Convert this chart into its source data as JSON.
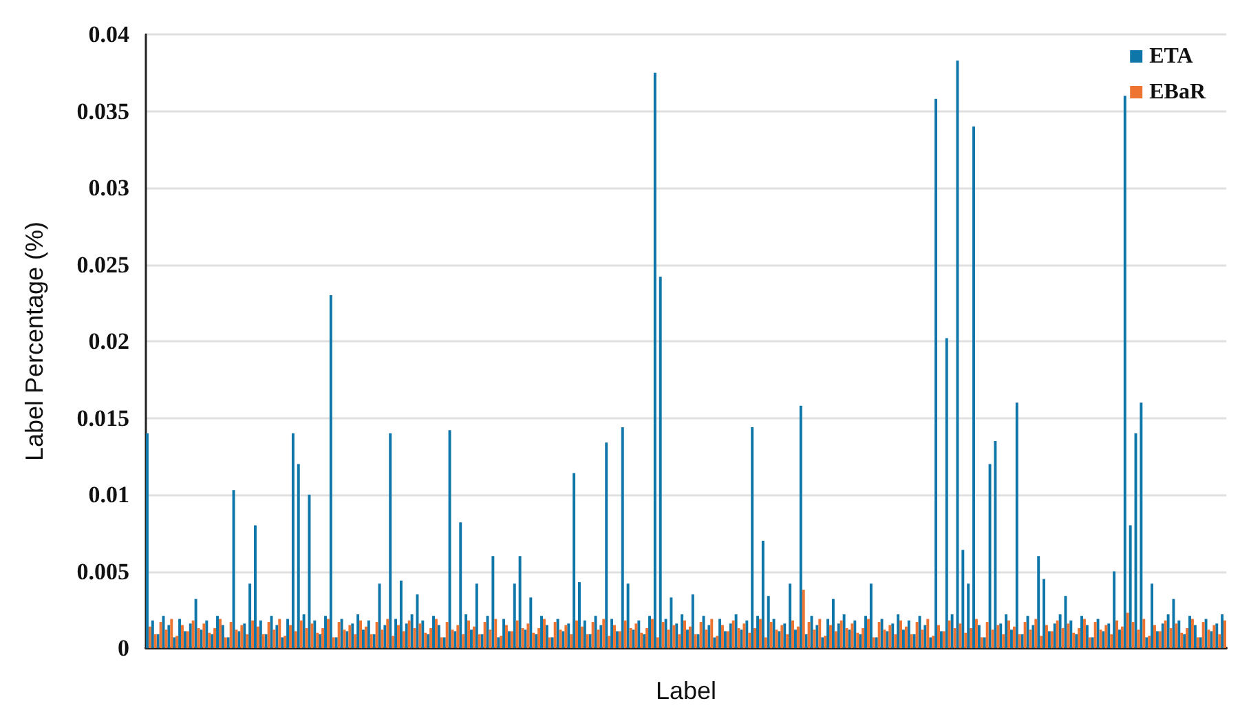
{
  "chart_data": {
    "type": "bar",
    "xlabel": "Label",
    "ylabel": "Label Percentage (%)",
    "categories": [
      null,
      null,
      null,
      null,
      null,
      null,
      null,
      null,
      null,
      null,
      null,
      null,
      null,
      null,
      null,
      null,
      null,
      null,
      null,
      null,
      null,
      null,
      null,
      null,
      null,
      null,
      null,
      null,
      null,
      null,
      null,
      null,
      null,
      null,
      null,
      null,
      null,
      null,
      null,
      null,
      null,
      null,
      null,
      null,
      null,
      null,
      null,
      null,
      null,
      null,
      null,
      null,
      null,
      null,
      null,
      null,
      null,
      null,
      null,
      null,
      null,
      null,
      null,
      null,
      null,
      null,
      null,
      null,
      null,
      null,
      null,
      null,
      null,
      null,
      null,
      null,
      null,
      null,
      null,
      null,
      null,
      null,
      null,
      null,
      null,
      null,
      null,
      null,
      null,
      null,
      null,
      null,
      null,
      null,
      null,
      null,
      null,
      null,
      null,
      null,
      null,
      null,
      null,
      null,
      null,
      null,
      null,
      null,
      null,
      null,
      null,
      null,
      null,
      null,
      null,
      null,
      null,
      null,
      null,
      null,
      null,
      null,
      null,
      null,
      null,
      null,
      null,
      null,
      null,
      null,
      null,
      null,
      null,
      null,
      null,
      null,
      null,
      null,
      null,
      null,
      null,
      null,
      null,
      null,
      null,
      null,
      null,
      null,
      null,
      null,
      null,
      null,
      null,
      null,
      null,
      null,
      null,
      null,
      null,
      null,
      null,
      null,
      null,
      null,
      null,
      null,
      null,
      null,
      null,
      null,
      null,
      null,
      null,
      null,
      null,
      null,
      null,
      null,
      null,
      null,
      null,
      null,
      null,
      null,
      null,
      null,
      null,
      null,
      null,
      null,
      null,
      null,
      null,
      null,
      null,
      null,
      null,
      null,
      null,
      null
    ],
    "series": [
      {
        "name": "ETA",
        "color": "#0e76a8",
        "values": [
          0.014,
          0.0018,
          0.0009,
          0.0021,
          0.0015,
          0.0007,
          0.0019,
          0.0011,
          0.0016,
          0.0032,
          0.0012,
          0.0018,
          0.0009,
          0.0021,
          0.0015,
          0.0007,
          0.0103,
          0.0011,
          0.0016,
          0.0042,
          0.008,
          0.0018,
          0.0009,
          0.0021,
          0.0015,
          0.0007,
          0.0019,
          0.014,
          0.012,
          0.0022,
          0.01,
          0.0018,
          0.0009,
          0.0021,
          0.023,
          0.0007,
          0.0019,
          0.0011,
          0.0016,
          0.0022,
          0.0012,
          0.0018,
          0.0009,
          0.0042,
          0.0015,
          0.014,
          0.0019,
          0.0044,
          0.0016,
          0.0022,
          0.0035,
          0.0018,
          0.0009,
          0.0021,
          0.0015,
          0.0007,
          0.0142,
          0.0011,
          0.0082,
          0.0022,
          0.0012,
          0.0042,
          0.0009,
          0.0021,
          0.006,
          0.0007,
          0.0019,
          0.0011,
          0.0042,
          0.006,
          0.0012,
          0.0033,
          0.0009,
          0.0021,
          0.0015,
          0.0007,
          0.0019,
          0.0011,
          0.0016,
          0.0114,
          0.0043,
          0.0018,
          0.0009,
          0.0021,
          0.0015,
          0.0134,
          0.0019,
          0.0011,
          0.0144,
          0.0042,
          0.0012,
          0.0018,
          0.0009,
          0.0021,
          0.0375,
          0.0242,
          0.0019,
          0.0033,
          0.0016,
          0.0022,
          0.0012,
          0.0035,
          0.0009,
          0.0021,
          0.0015,
          0.0007,
          0.0019,
          0.0011,
          0.0016,
          0.0022,
          0.0012,
          0.0018,
          0.0144,
          0.0021,
          0.007,
          0.0034,
          0.0019,
          0.0011,
          0.0016,
          0.0042,
          0.0012,
          0.0158,
          0.0009,
          0.0021,
          0.0015,
          0.0007,
          0.0019,
          0.0032,
          0.0016,
          0.0022,
          0.0012,
          0.0018,
          0.0009,
          0.0021,
          0.0042,
          0.0007,
          0.0019,
          0.0011,
          0.0016,
          0.0022,
          0.0012,
          0.0018,
          0.0009,
          0.0021,
          0.0015,
          0.0007,
          0.0358,
          0.0011,
          0.0202,
          0.0022,
          0.0383,
          0.0064,
          0.0042,
          0.034,
          0.0015,
          0.0007,
          0.012,
          0.0135,
          0.0016,
          0.0022,
          0.0012,
          0.016,
          0.0009,
          0.0021,
          0.0015,
          0.006,
          0.0045,
          0.0011,
          0.0016,
          0.0022,
          0.0034,
          0.0018,
          0.0009,
          0.0021,
          0.0015,
          0.0007,
          0.0019,
          0.0011,
          0.0016,
          0.005,
          0.0012,
          0.036,
          0.008,
          0.014,
          0.016,
          0.0007,
          0.0042,
          0.0011,
          0.0016,
          0.0022,
          0.0032,
          0.0018,
          0.0009,
          0.0021,
          0.0015,
          0.0007,
          0.0019,
          0.0011,
          0.0016,
          0.0022
        ]
      },
      {
        "name": "EBaR",
        "color": "#ed7431",
        "values": [
          0.0014,
          0.0009,
          0.0017,
          0.0012,
          0.0019,
          0.0008,
          0.0015,
          0.0011,
          0.0018,
          0.0013,
          0.0016,
          0.001,
          0.0013,
          0.0019,
          0.0007,
          0.0017,
          0.0012,
          0.0015,
          0.0009,
          0.0018,
          0.0014,
          0.0009,
          0.0017,
          0.0012,
          0.0019,
          0.0008,
          0.0015,
          0.0011,
          0.0018,
          0.0013,
          0.0016,
          0.001,
          0.0013,
          0.0019,
          0.0007,
          0.0017,
          0.0012,
          0.0015,
          0.0009,
          0.0018,
          0.0014,
          0.0009,
          0.0017,
          0.0012,
          0.0019,
          0.0008,
          0.0015,
          0.0011,
          0.0018,
          0.0013,
          0.0016,
          0.001,
          0.0013,
          0.0019,
          0.0007,
          0.0017,
          0.0012,
          0.0015,
          0.0009,
          0.0018,
          0.0014,
          0.0009,
          0.0017,
          0.0012,
          0.0019,
          0.0008,
          0.0015,
          0.0011,
          0.0018,
          0.0013,
          0.0016,
          0.001,
          0.0013,
          0.0019,
          0.0007,
          0.0017,
          0.0012,
          0.0015,
          0.0009,
          0.0018,
          0.0014,
          0.0009,
          0.0017,
          0.0012,
          0.0019,
          0.0008,
          0.0015,
          0.0011,
          0.0018,
          0.0013,
          0.0016,
          0.001,
          0.0013,
          0.0019,
          0.0007,
          0.0017,
          0.0012,
          0.0015,
          0.0009,
          0.0018,
          0.0014,
          0.0009,
          0.0017,
          0.0012,
          0.0019,
          0.0008,
          0.0015,
          0.0011,
          0.0018,
          0.0013,
          0.0016,
          0.001,
          0.0013,
          0.0019,
          0.0007,
          0.0017,
          0.0012,
          0.0015,
          0.0009,
          0.0018,
          0.0014,
          0.0038,
          0.0017,
          0.0012,
          0.0019,
          0.0008,
          0.0015,
          0.0011,
          0.0018,
          0.0013,
          0.0016,
          0.001,
          0.0013,
          0.0019,
          0.0007,
          0.0017,
          0.0012,
          0.0015,
          0.0009,
          0.0018,
          0.0014,
          0.0009,
          0.0017,
          0.0012,
          0.0019,
          0.0008,
          0.0015,
          0.0011,
          0.0018,
          0.0013,
          0.0016,
          0.001,
          0.0013,
          0.0019,
          0.0007,
          0.0017,
          0.0012,
          0.0015,
          0.0009,
          0.0018,
          0.0014,
          0.0009,
          0.0017,
          0.0012,
          0.0019,
          0.0008,
          0.0015,
          0.0011,
          0.0018,
          0.0013,
          0.0016,
          0.001,
          0.0013,
          0.0019,
          0.0007,
          0.0017,
          0.0012,
          0.0015,
          0.0009,
          0.0018,
          0.0014,
          0.0023,
          0.0017,
          0.0012,
          0.0019,
          0.0008,
          0.0015,
          0.0011,
          0.0018,
          0.0013,
          0.0016,
          0.001,
          0.0013,
          0.0019,
          0.0007,
          0.0017,
          0.0012,
          0.0015,
          0.0009,
          0.0018
        ]
      }
    ],
    "ylim": [
      0,
      0.04
    ],
    "yticks": [
      0,
      0.005,
      0.01,
      0.015,
      0.02,
      0.025,
      0.03,
      0.035,
      0.04
    ],
    "grid": "y",
    "legend": "top right"
  }
}
